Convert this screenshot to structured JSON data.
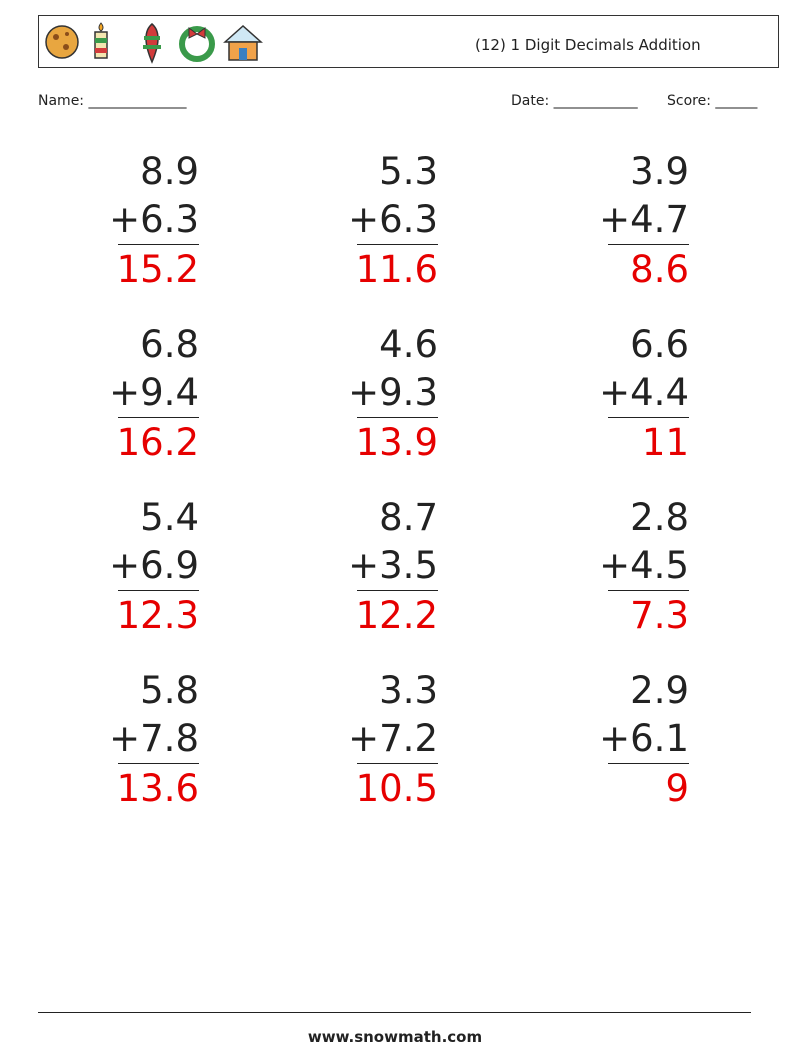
{
  "header": {
    "title": "(12) 1 Digit Decimals Addition",
    "name_label": "Name: ______________",
    "date_label": "Date: ____________",
    "score_label": "Score: ______"
  },
  "problems": [
    {
      "top": "8.9",
      "bottom": "+6.3",
      "answer": "15.2"
    },
    {
      "top": "5.3",
      "bottom": "+6.3",
      "answer": "11.6"
    },
    {
      "top": "3.9",
      "bottom": "+4.7",
      "answer": "8.6"
    },
    {
      "top": "6.8",
      "bottom": "+9.4",
      "answer": "16.2"
    },
    {
      "top": "4.6",
      "bottom": "+9.3",
      "answer": "13.9"
    },
    {
      "top": "6.6",
      "bottom": "+4.4",
      "answer": "11"
    },
    {
      "top": "5.4",
      "bottom": "+6.9",
      "answer": "12.3"
    },
    {
      "top": "8.7",
      "bottom": "+3.5",
      "answer": "12.2"
    },
    {
      "top": "2.8",
      "bottom": "+4.5",
      "answer": "7.3"
    },
    {
      "top": "5.8",
      "bottom": "+7.8",
      "answer": "13.6"
    },
    {
      "top": "3.3",
      "bottom": "+7.2",
      "answer": "10.5"
    },
    {
      "top": "2.9",
      "bottom": "+6.1",
      "answer": "9"
    }
  ],
  "footer": {
    "site": "www.snowmath.com"
  }
}
